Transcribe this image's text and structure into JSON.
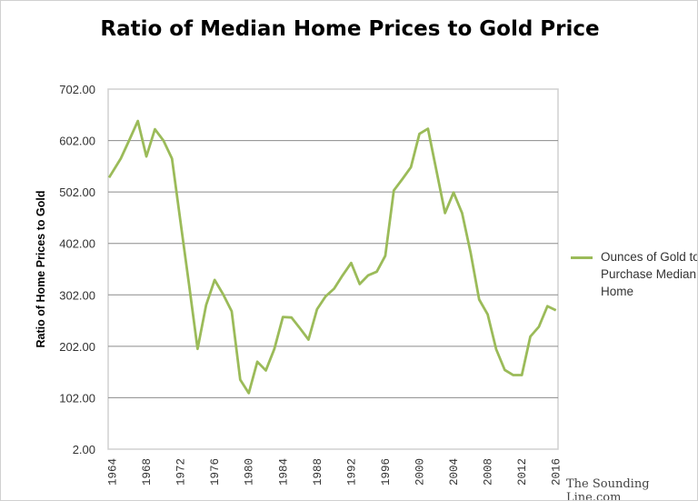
{
  "chart_data": {
    "type": "line",
    "title": "Ratio of Median Home Prices to Gold Price",
    "xlabel": "",
    "ylabel": "Ratio of Home Prices to Gold",
    "ylim": [
      2,
      702
    ],
    "yticks": [
      "2.00",
      "102.00",
      "202.00",
      "302.00",
      "402.00",
      "502.00",
      "602.00",
      "702.00"
    ],
    "xticks": [
      "1964",
      "1968",
      "1972",
      "1976",
      "1980",
      "1984",
      "1988",
      "1992",
      "1996",
      "2000",
      "2004",
      "2008",
      "2012",
      "2016"
    ],
    "grid": true,
    "legend_position": "right",
    "x": [
      1964,
      1965,
      1966,
      1967,
      1968,
      1969,
      1970,
      1971,
      1972,
      1973,
      1974,
      1975,
      1976,
      1977,
      1978,
      1979,
      1980,
      1981,
      1982,
      1983,
      1984,
      1985,
      1986,
      1987,
      1988,
      1989,
      1990,
      1991,
      1992,
      1993,
      1994,
      1995,
      1996,
      1997,
      1998,
      1999,
      2000,
      2001,
      2002,
      2003,
      2004,
      2005,
      2006,
      2007,
      2008,
      2009,
      2010,
      2011,
      2012,
      2013,
      2014,
      2015,
      2016
    ],
    "series": [
      {
        "name": "Ounces of Gold to Purchase Median Home",
        "color": "#9bbb59",
        "values": [
          530,
          567,
          603,
          640,
          571,
          624,
          602,
          567,
          444,
          322,
          197,
          282,
          331,
          303,
          270,
          137,
          111,
          172,
          155,
          197,
          259,
          258,
          237,
          215,
          274,
          299,
          314,
          340,
          364,
          323,
          340,
          347,
          378,
          505,
          527,
          550,
          615,
          625,
          543,
          461,
          501,
          461,
          384,
          293,
          264,
          196,
          156,
          146,
          146,
          221,
          240,
          280,
          272
        ]
      }
    ]
  },
  "watermark": "The Sounding Line.com"
}
